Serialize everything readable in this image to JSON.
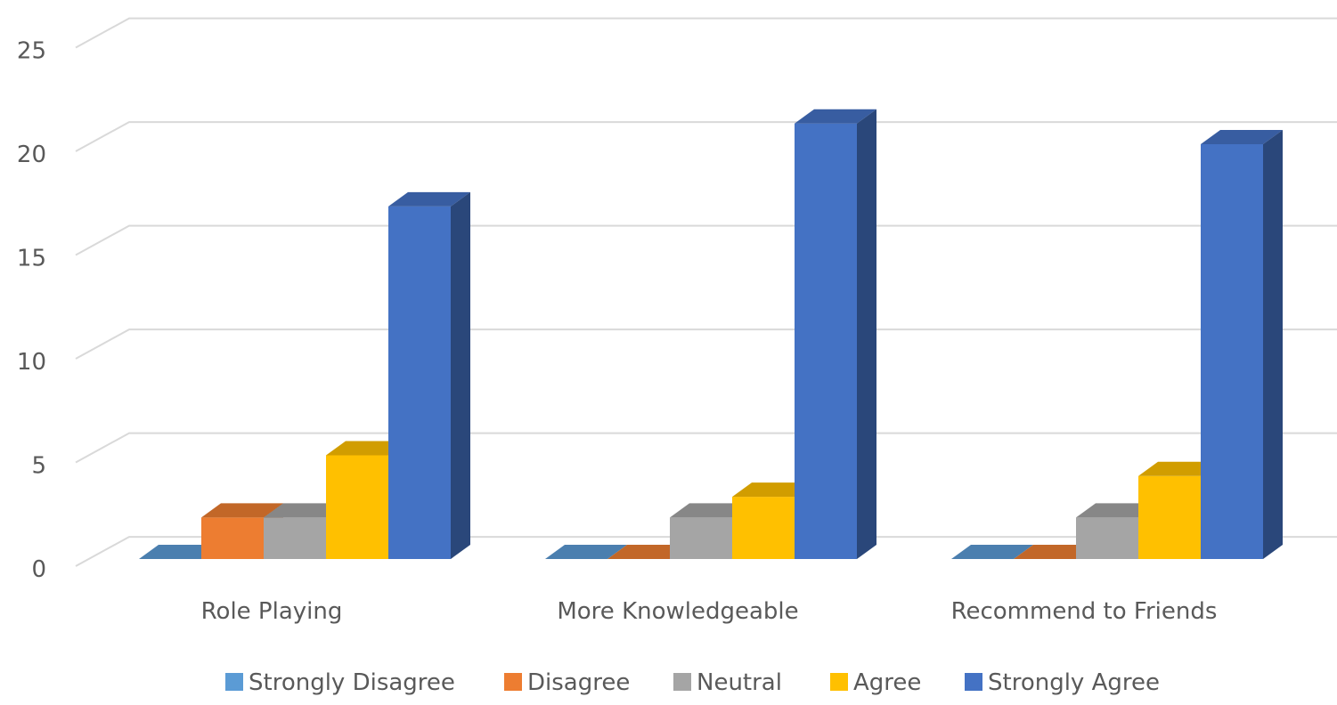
{
  "chart_data": {
    "type": "bar",
    "categories": [
      "Role Playing",
      "More Knowledgeable",
      "Recommend to Friends"
    ],
    "series": [
      {
        "name": "Strongly Disagree",
        "values": [
          0,
          0,
          0
        ],
        "color": "#5b9bd5"
      },
      {
        "name": "Disagree",
        "values": [
          2,
          0,
          0
        ],
        "color": "#ed7d31"
      },
      {
        "name": "Neutral",
        "values": [
          2,
          2,
          2
        ],
        "color": "#a5a5a5"
      },
      {
        "name": "Agree",
        "values": [
          5,
          3,
          4
        ],
        "color": "#ffc000"
      },
      {
        "name": "Strongly Agree",
        "values": [
          17,
          21,
          20
        ],
        "color": "#4472c4"
      }
    ],
    "y_ticks": [
      "0",
      "5",
      "10",
      "15",
      "20",
      "25"
    ],
    "ylim": [
      0,
      25
    ],
    "grid": true,
    "legend_position": "bottom",
    "style": "3d-clustered-column"
  }
}
